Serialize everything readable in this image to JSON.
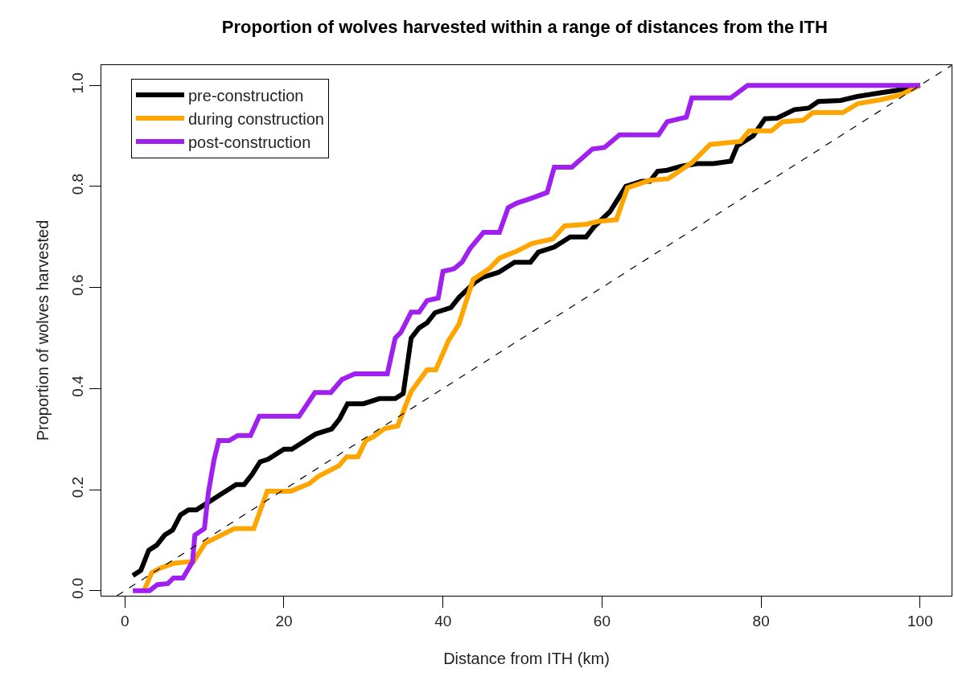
{
  "chart_data": {
    "type": "line",
    "title": "Proportion of wolves harvested within a range of distances from the ITH",
    "xlabel": "Distance from ITH (km)",
    "ylabel": "Proportion of wolves harvested",
    "xlim": [
      -2.96,
      103.96
    ],
    "ylim": [
      -0.01,
      1.04
    ],
    "xticks": [
      0,
      20,
      40,
      60,
      80,
      100
    ],
    "yticks": [
      {
        "value": 0,
        "label": "0.0"
      },
      0.2,
      0.4,
      0.6,
      0.8,
      {
        "value": 1,
        "label": "1.0"
      }
    ],
    "legend": "top left",
    "marker": "none",
    "series": [
      {
        "name": "pre-construction",
        "color": "#000000",
        "x": [
          1,
          2,
          3,
          4,
          5,
          6,
          7,
          8,
          9,
          10,
          12,
          14,
          15,
          16,
          17,
          18,
          20,
          21,
          22,
          23,
          24,
          26,
          27,
          28,
          30,
          32,
          34,
          35,
          36,
          37,
          38,
          39,
          41,
          42,
          44,
          45,
          47,
          48,
          49,
          51,
          52,
          54,
          55,
          56,
          58,
          59,
          61,
          63,
          65,
          66,
          67,
          68.2,
          70,
          72,
          74,
          76.2,
          77,
          79,
          80.5,
          82,
          84.2,
          86,
          87.2,
          90,
          92.1,
          95,
          97,
          100
        ],
        "values": [
          0.03,
          0.04,
          0.08,
          0.09,
          0.11,
          0.12,
          0.15,
          0.16,
          0.16,
          0.17,
          0.19,
          0.21,
          0.21,
          0.23,
          0.255,
          0.26,
          0.28,
          0.28,
          0.29,
          0.3,
          0.31,
          0.32,
          0.34,
          0.37,
          0.37,
          0.38,
          0.38,
          0.39,
          0.5,
          0.52,
          0.53,
          0.55,
          0.56,
          0.58,
          0.61,
          0.62,
          0.63,
          0.64,
          0.65,
          0.65,
          0.67,
          0.68,
          0.69,
          0.7,
          0.7,
          0.72,
          0.75,
          0.8,
          0.81,
          0.81,
          0.83,
          0.832,
          0.84,
          0.845,
          0.845,
          0.85,
          0.88,
          0.9,
          0.934,
          0.935,
          0.952,
          0.955,
          0.968,
          0.97,
          0.978,
          0.985,
          0.99,
          1.0
        ]
      },
      {
        "name": "during construction",
        "color": "#ffa500",
        "x": [
          2.4,
          3.4,
          4.4,
          6.1,
          7.8,
          8.6,
          10.1,
          13.8,
          16.2,
          17.9,
          20.9,
          23.2,
          24.3,
          26.9,
          27.9,
          29.3,
          30.3,
          31.3,
          32.7,
          34.3,
          36.0,
          38.0,
          39.1,
          40.7,
          42.0,
          43.8,
          45.8,
          47.1,
          49.3,
          51.2,
          53.8,
          55.3,
          58.0,
          59.6,
          61.8,
          63.2,
          66.0,
          68.3,
          71.3,
          73.6,
          77.4,
          78.5,
          81.3,
          82.7,
          85.3,
          86.5,
          90.3,
          92.2,
          95.2,
          97.5,
          100
        ],
        "values": [
          0.0,
          0.036,
          0.044,
          0.054,
          0.057,
          0.057,
          0.094,
          0.123,
          0.123,
          0.197,
          0.197,
          0.212,
          0.226,
          0.247,
          0.265,
          0.265,
          0.297,
          0.305,
          0.321,
          0.326,
          0.394,
          0.437,
          0.437,
          0.495,
          0.527,
          0.616,
          0.637,
          0.658,
          0.672,
          0.687,
          0.696,
          0.722,
          0.725,
          0.731,
          0.734,
          0.797,
          0.812,
          0.815,
          0.847,
          0.883,
          0.889,
          0.91,
          0.91,
          0.928,
          0.931,
          0.946,
          0.946,
          0.964,
          0.972,
          0.981,
          1.0
        ]
      },
      {
        "name": "post-construction",
        "color": "#a020f0",
        "x": [
          1,
          3.1,
          4.1,
          5.4,
          6.1,
          7.3,
          8.5,
          8.8,
          10.0,
          10.5,
          11.2,
          11.8,
          13.1,
          14.2,
          15.8,
          16.9,
          21.9,
          23.9,
          25.9,
          27.3,
          28.9,
          33.0,
          34.0,
          34.7,
          36.0,
          37.0,
          38.0,
          39.4,
          40.0,
          41.4,
          42.4,
          43.4,
          45.1,
          47.1,
          48.2,
          49.3,
          51.2,
          53.1,
          54.0,
          56.2,
          58.8,
          60.3,
          62.2,
          67.1,
          68.2,
          70.6,
          71.3,
          76.2,
          78.3,
          100
        ],
        "values": [
          0.0,
          0.0,
          0.012,
          0.014,
          0.025,
          0.025,
          0.057,
          0.11,
          0.123,
          0.194,
          0.258,
          0.297,
          0.297,
          0.307,
          0.307,
          0.345,
          0.345,
          0.392,
          0.392,
          0.418,
          0.429,
          0.429,
          0.5,
          0.511,
          0.551,
          0.551,
          0.574,
          0.579,
          0.632,
          0.637,
          0.65,
          0.677,
          0.709,
          0.709,
          0.758,
          0.767,
          0.777,
          0.788,
          0.838,
          0.838,
          0.874,
          0.877,
          0.902,
          0.902,
          0.928,
          0.937,
          0.975,
          0.975,
          1.0,
          1.0
        ]
      },
      {
        "color": "#000000",
        "line_style": "dashed",
        "x": [
          -1,
          103.9
        ],
        "values": [
          -0.01,
          1.039
        ]
      }
    ]
  }
}
